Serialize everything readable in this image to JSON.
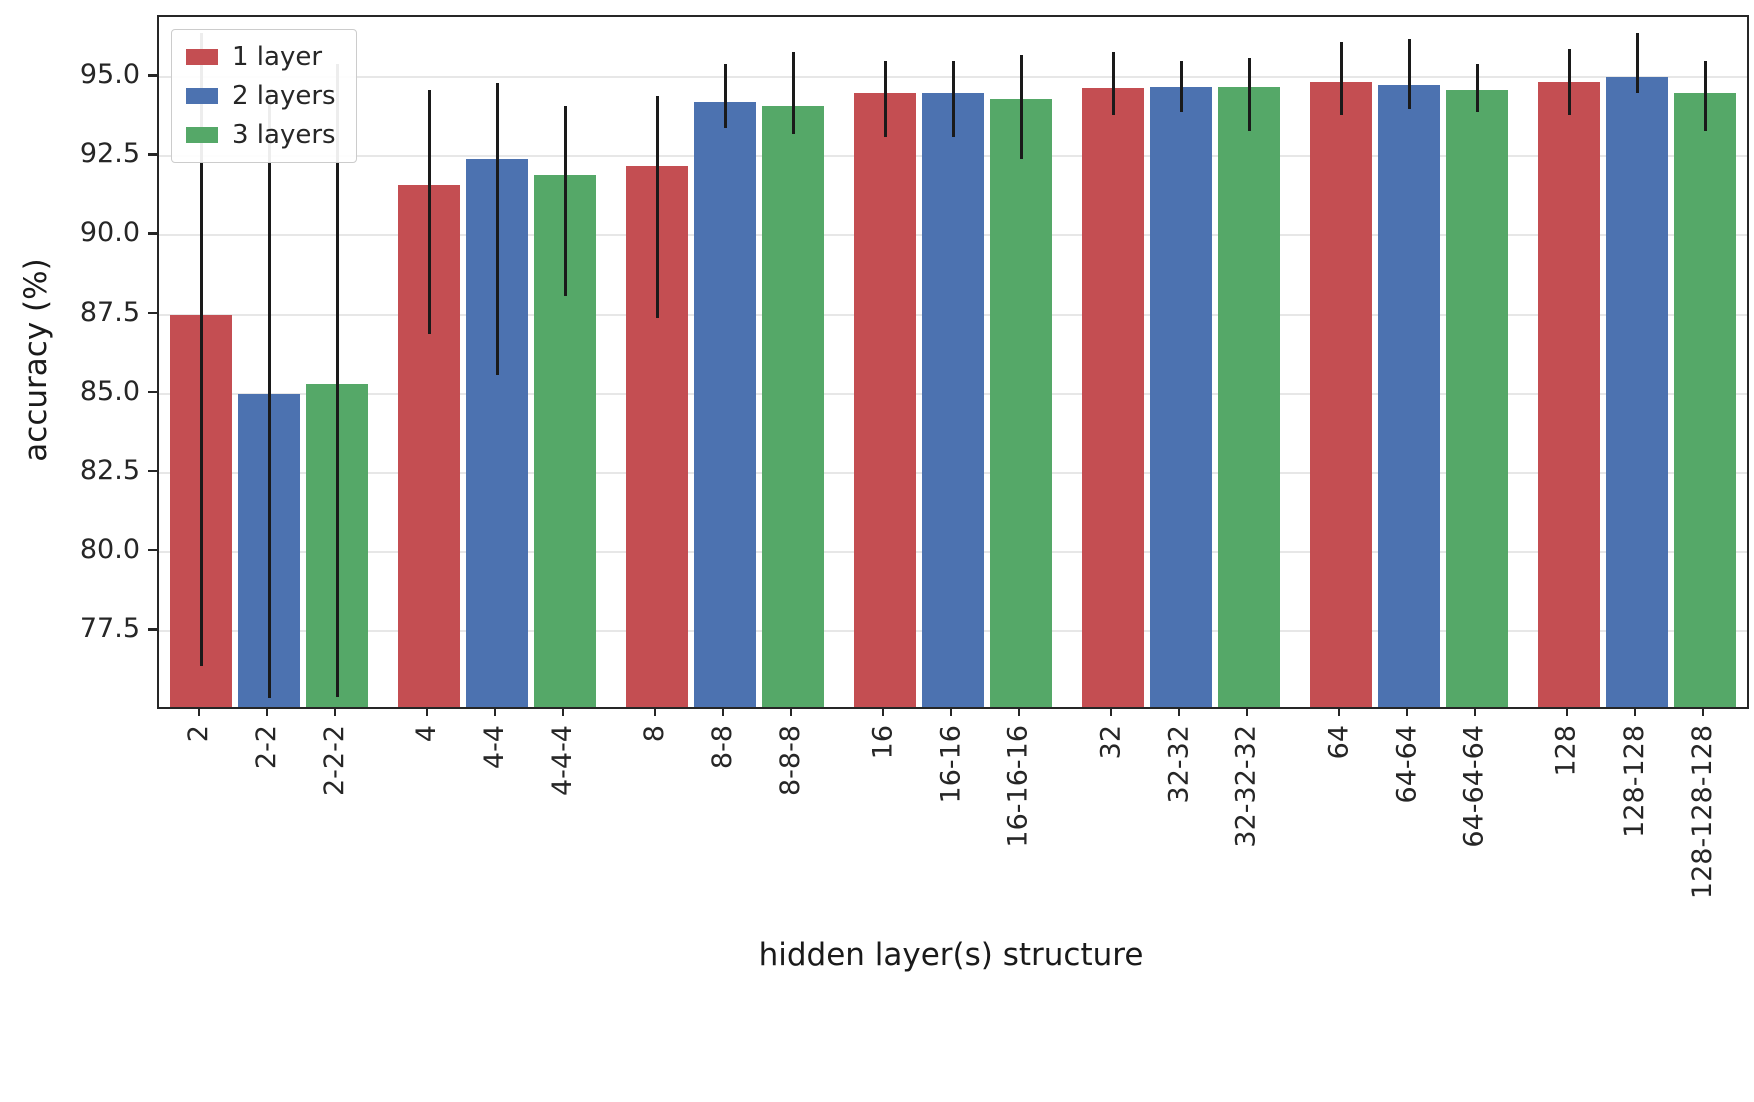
{
  "chart_data": {
    "type": "bar",
    "title": "",
    "xlabel": "hidden layer(s) structure",
    "ylabel": "accuracy (%)",
    "ylim": [
      75.1,
      96.9
    ],
    "grid": true,
    "ytick_values": [
      77.5,
      80.0,
      82.5,
      85.0,
      87.5,
      90.0,
      92.5,
      95.0
    ],
    "ytick_labels": [
      "77.5",
      "80.0",
      "82.5",
      "85.0",
      "87.5",
      "90.0",
      "92.5",
      "95.0"
    ],
    "groups": [
      "2",
      "4",
      "8",
      "16",
      "32",
      "64",
      "128"
    ],
    "xtick_labels": [
      "2",
      "2-2",
      "2-2-2",
      "4",
      "4-4",
      "4-4-4",
      "8",
      "8-8",
      "8-8-8",
      "16",
      "16-16",
      "16-16-16",
      "32",
      "32-32",
      "32-32-32",
      "64",
      "64-64",
      "64-64-64",
      "128",
      "128-128",
      "128-128-128"
    ],
    "legend": {
      "position": "upper-left",
      "entries": [
        "1 layer",
        "2 layers",
        "3 layers"
      ]
    },
    "error_bar_color": "#1a1a1a",
    "series": [
      {
        "name": "1 layer",
        "color": "#c44e52",
        "tick_labels": [
          "2",
          "4",
          "8",
          "16",
          "32",
          "64",
          "128"
        ],
        "values": [
          87.5,
          91.6,
          92.2,
          94.5,
          94.65,
          94.85,
          94.85
        ],
        "err_lo": [
          76.4,
          86.9,
          87.4,
          93.1,
          93.8,
          93.8,
          93.8
        ],
        "err_hi": [
          96.4,
          94.6,
          94.4,
          95.5,
          95.8,
          96.1,
          95.9
        ]
      },
      {
        "name": "2 layers",
        "color": "#4c72b0",
        "tick_labels": [
          "2-2",
          "4-4",
          "8-8",
          "16-16",
          "32-32",
          "64-64",
          "128-128"
        ],
        "values": [
          85.0,
          92.4,
          94.2,
          94.5,
          94.7,
          94.75,
          95.0
        ],
        "err_lo": [
          75.4,
          85.6,
          93.4,
          93.1,
          93.9,
          94.0,
          94.5
        ],
        "err_hi": [
          94.6,
          94.8,
          95.4,
          95.5,
          95.5,
          96.2,
          96.4
        ]
      },
      {
        "name": "3 layers",
        "color": "#55a868",
        "tick_labels": [
          "2-2-2",
          "4-4-4",
          "8-8-8",
          "16-16-16",
          "32-32-32",
          "64-64-64",
          "128-128-128"
        ],
        "values": [
          85.3,
          91.9,
          94.1,
          94.3,
          94.7,
          94.6,
          94.5
        ],
        "err_lo": [
          75.4,
          88.1,
          93.2,
          92.4,
          93.3,
          93.9,
          93.3
        ],
        "err_hi": [
          95.4,
          94.1,
          95.8,
          95.7,
          95.6,
          95.4,
          95.5
        ]
      }
    ]
  }
}
